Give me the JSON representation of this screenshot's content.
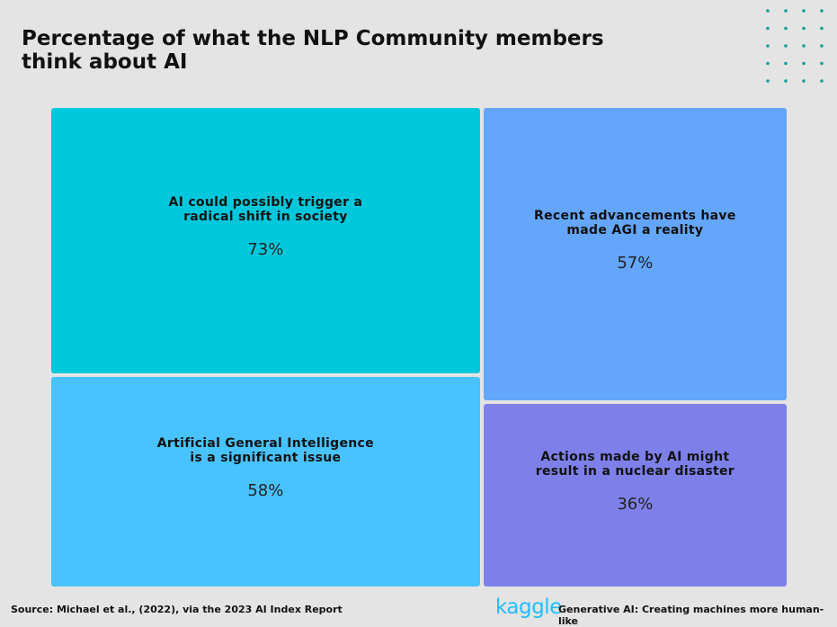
{
  "title_lines": [
    "Percentage of what the NLP Community members",
    "think about AI"
  ],
  "chart_data": {
    "type": "treemap",
    "title": "Percentage of what the NLP Community members think about AI",
    "unit": "%",
    "items": [
      {
        "label_lines": [
          "AI could possibly trigger a",
          "radical shift in society"
        ],
        "value": 73,
        "value_label": "73%",
        "color": "#00c8dc"
      },
      {
        "label_lines": [
          "Artificial General Intelligence",
          "is a significant issue"
        ],
        "value": 58,
        "value_label": "58%",
        "color": "#48c3ff"
      },
      {
        "label_lines": [
          "Recent advancements have",
          "made AGI a reality"
        ],
        "value": 57,
        "value_label": "57%",
        "color": "#63a6fb"
      },
      {
        "label_lines": [
          "Actions made by AI might",
          "result in a nuclear disaster"
        ],
        "value": 36,
        "value_label": "36%",
        "color": "#7e80e9"
      }
    ]
  },
  "footer": {
    "source": "Source: Michael et al., (2022), via the 2023 AI Index Report",
    "brand": "kaggle",
    "tagline": "Generative AI: Creating machines more human-like"
  },
  "colors": {
    "background": "#e4e4e4",
    "dots": "#1a9e98",
    "brand": "#20beff"
  }
}
